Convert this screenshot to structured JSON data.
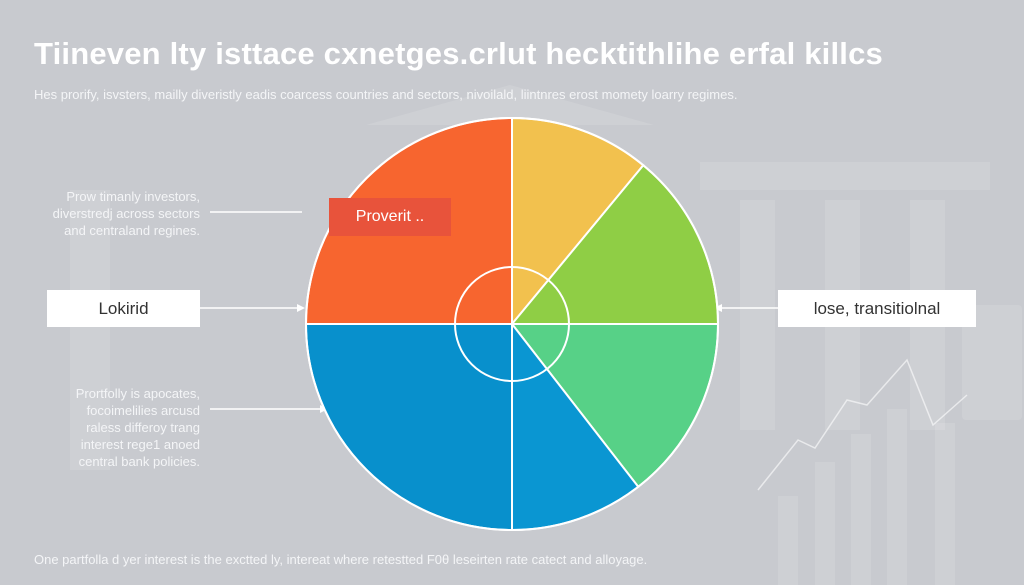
{
  "header": {
    "title": "Tiineven lty isttace cxnetges.crlut hecktithlihe erfal killcs",
    "subtitle": "Hes prorify, isvsters, mailly diveristly eadis coarcess countries and sectors, nivoilald, liintnres erost momety loarry regimes."
  },
  "callouts": {
    "note_top": [
      "Prow timanly investors,",
      "diverstredj across sectors",
      "and centraland regines."
    ],
    "left_box": "Lokirid",
    "note_bottom": [
      "Prortfolly is apocates,",
      "focoimelilies arcusd",
      "raless differoy trang",
      "interest rege1 anoed",
      "central bank policies."
    ],
    "right_box": "lose, transitiolnal",
    "slice_tag": "Proverit .."
  },
  "footer": "One partfolla d yer interest is the exctted ly, intereat where retestted F0θ leseirten rate catect and alloyage.",
  "chart_data": {
    "type": "pie",
    "title": "",
    "start": "12 o'clock, clockwise",
    "slices": [
      {
        "value": 11,
        "color": "#f2c14e"
      },
      {
        "value": 14,
        "color": "#8fce45"
      },
      {
        "value": 14.5,
        "color": "#57d187"
      },
      {
        "value": 10.5,
        "color": "#0a96d2"
      },
      {
        "value": 25,
        "color": "#0890cc"
      },
      {
        "value": 25,
        "color": "#f7652f"
      }
    ],
    "inner_ring": true
  }
}
